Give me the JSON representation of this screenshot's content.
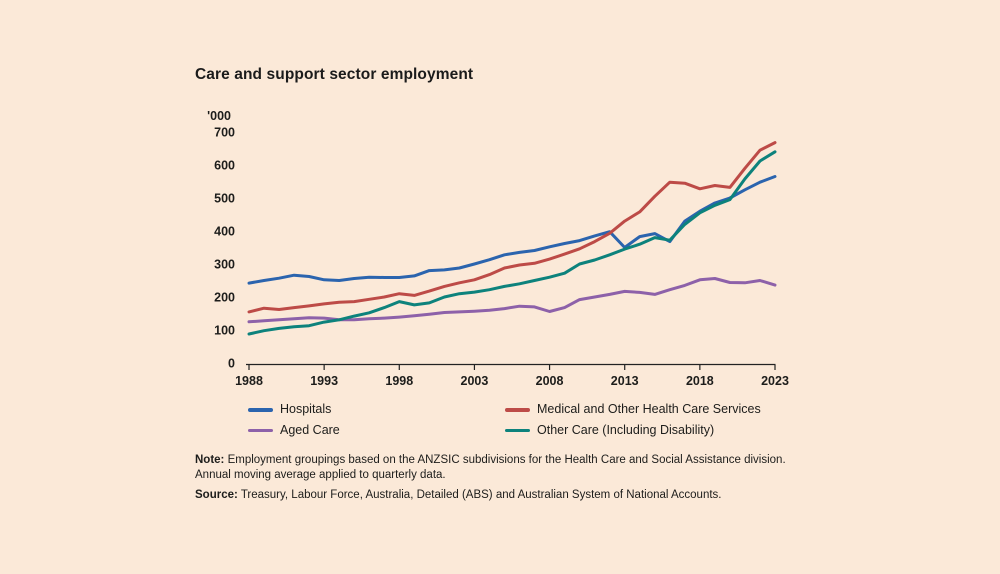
{
  "title": "Care and support sector employment",
  "colors": {
    "background": "#fbe9d8",
    "text": "#1d1d1b",
    "axis": "#222222"
  },
  "note": {
    "label": "Note:",
    "text": " Employment groupings based on the ANZSIC subdivisions for the Health Care and Social Assistance division. Annual moving average applied to quarterly data."
  },
  "source": {
    "label": "Source:",
    "text": " Treasury, Labour Force, Australia, Detailed (ABS) and Australian System of National Accounts."
  },
  "chart_data": {
    "type": "line",
    "title": "Care and support sector employment",
    "unit_label": "'000",
    "xlabel": "",
    "ylabel": "'000",
    "ylim": [
      0,
      700
    ],
    "grid": false,
    "legend_position": "bottom",
    "y_ticks": [
      0,
      100,
      200,
      300,
      400,
      500,
      600,
      700
    ],
    "x_ticks": [
      1988,
      1993,
      1998,
      2003,
      2008,
      2013,
      2018,
      2023
    ],
    "x": [
      1988,
      1989,
      1990,
      1991,
      1992,
      1993,
      1994,
      1995,
      1996,
      1997,
      1998,
      1999,
      2000,
      2001,
      2002,
      2003,
      2004,
      2005,
      2006,
      2007,
      2008,
      2009,
      2010,
      2011,
      2012,
      2013,
      2014,
      2015,
      2016,
      2017,
      2018,
      2019,
      2020,
      2021,
      2022,
      2023
    ],
    "series": [
      {
        "name": "Hospitals",
        "color": "#2b64ae",
        "values": [
          242,
          250,
          257,
          266,
          262,
          252,
          250,
          256,
          260,
          259,
          259,
          264,
          280,
          282,
          288,
          300,
          313,
          328,
          335,
          341,
          352,
          362,
          371,
          385,
          398,
          350,
          383,
          392,
          368,
          430,
          460,
          485,
          500,
          525,
          548,
          565
        ]
      },
      {
        "name": "Medical and Other Health Care Services",
        "color": "#bd4b47",
        "values": [
          155,
          166,
          162,
          168,
          173,
          179,
          184,
          186,
          193,
          200,
          210,
          205,
          218,
          232,
          243,
          252,
          268,
          288,
          297,
          302,
          315,
          330,
          346,
          368,
          393,
          430,
          458,
          505,
          548,
          545,
          528,
          538,
          532,
          590,
          645,
          668
        ]
      },
      {
        "name": "Aged Care",
        "color": "#8d61a9",
        "values": [
          125,
          128,
          131,
          134,
          137,
          136,
          131,
          131,
          134,
          136,
          139,
          143,
          148,
          153,
          155,
          157,
          160,
          165,
          172,
          170,
          156,
          168,
          192,
          200,
          208,
          217,
          214,
          208,
          222,
          235,
          252,
          256,
          244,
          243,
          250,
          236
        ]
      },
      {
        "name": "Other Care (Including Disability)",
        "color": "#0d827c",
        "values": [
          88,
          98,
          105,
          110,
          113,
          124,
          131,
          142,
          152,
          168,
          186,
          176,
          182,
          200,
          210,
          215,
          222,
          232,
          240,
          250,
          260,
          272,
          300,
          312,
          328,
          345,
          360,
          380,
          372,
          420,
          455,
          478,
          495,
          558,
          612,
          640
        ]
      }
    ]
  }
}
